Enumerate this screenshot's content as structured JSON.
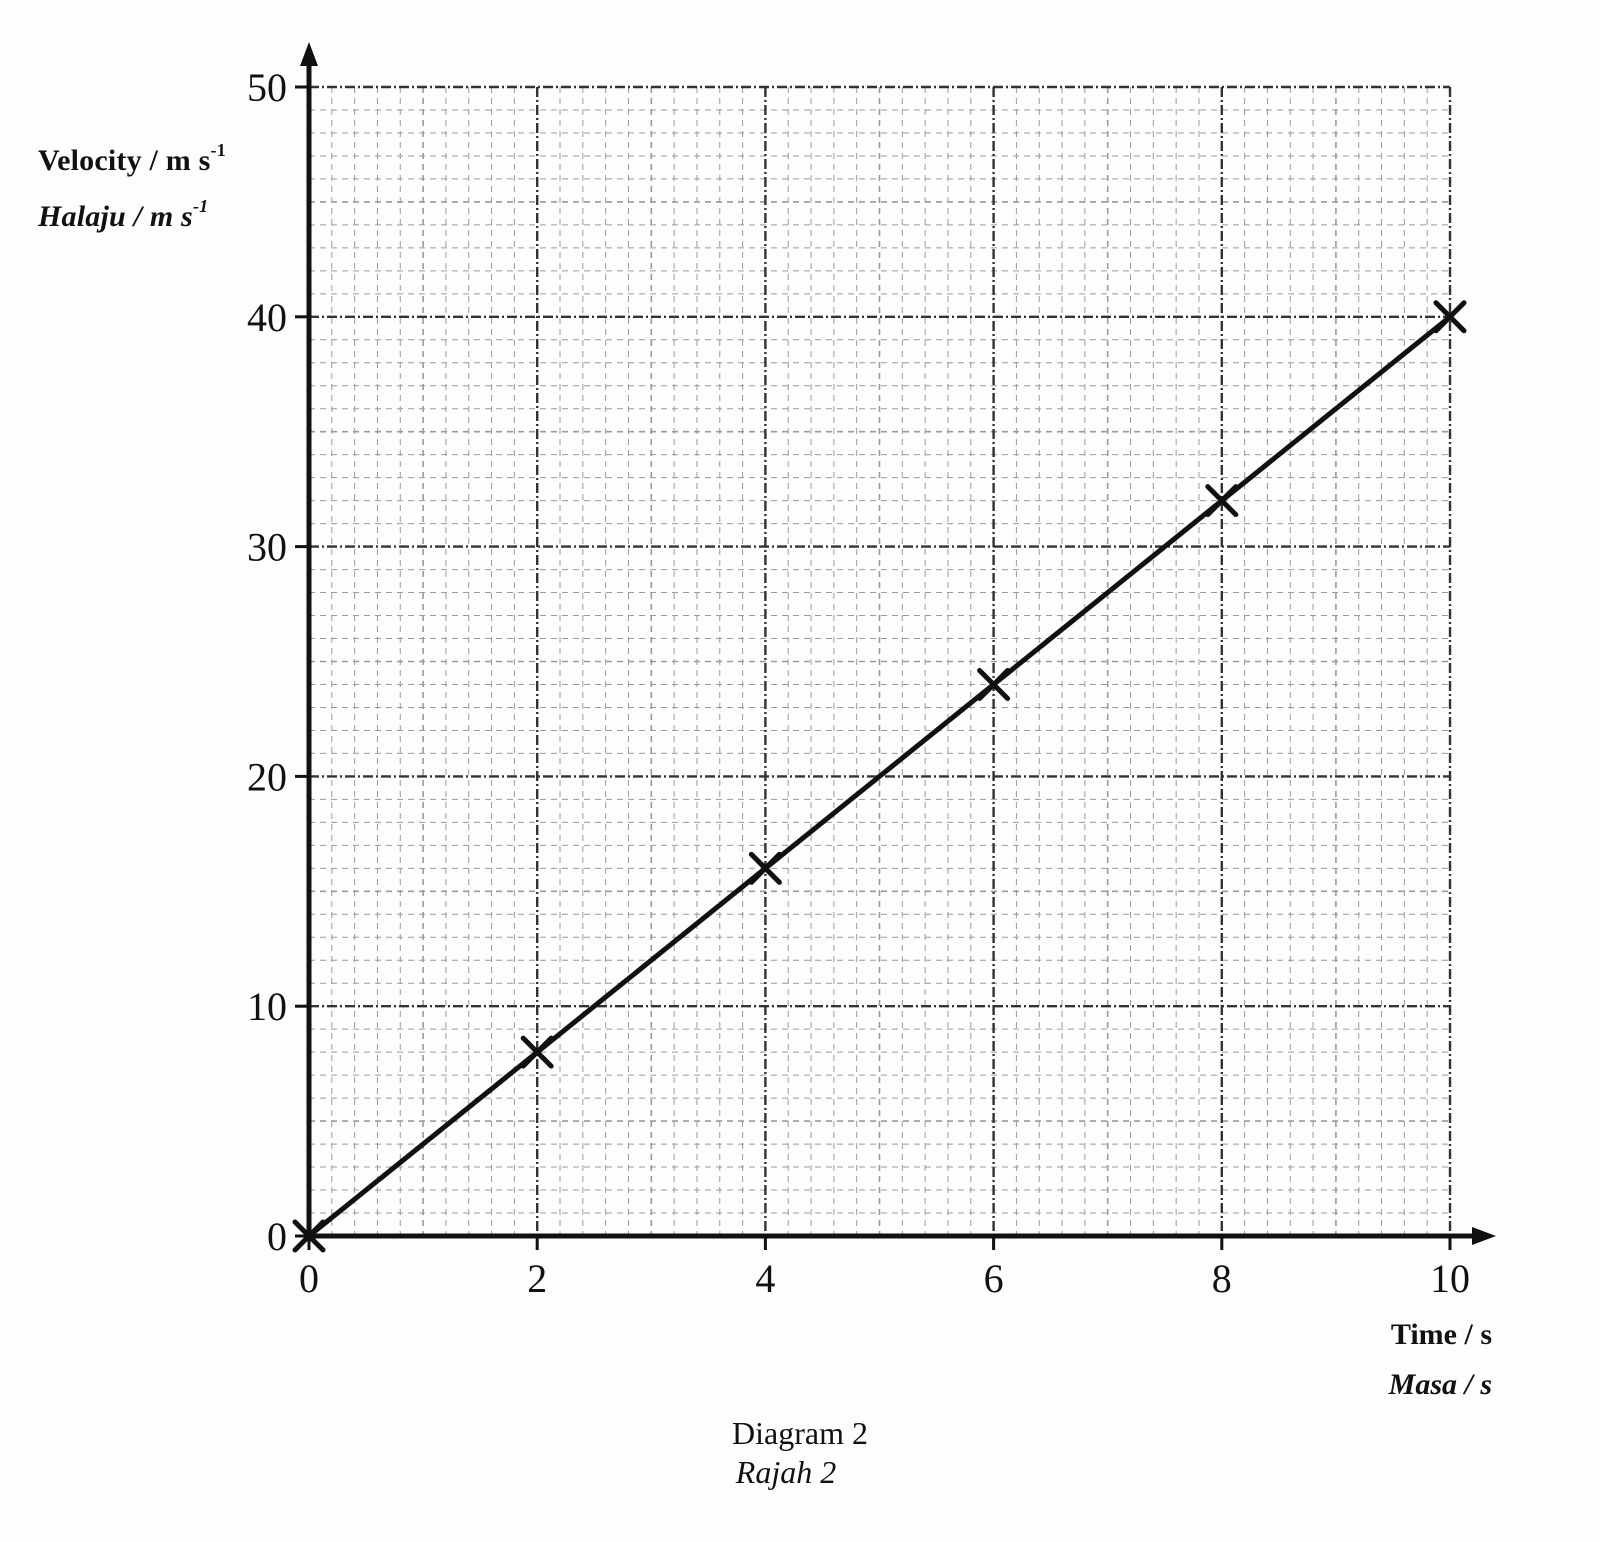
{
  "figure": {
    "caption": "Diagram 2",
    "caption_translation": "Rajah 2"
  },
  "axes": {
    "y_label": "Velocity / m s",
    "y_label_sup": "-1",
    "y_label_translation": "Halaju / m s",
    "y_label_translation_sup": "-1",
    "x_label": "Time / s",
    "x_label_translation": "Masa / s"
  },
  "colors": {
    "ink": "#111111",
    "grid_minor": "#9a9a9a",
    "grid_major": "#333333",
    "paper": "#fdfdfb"
  },
  "chart_data": {
    "type": "line",
    "title": "Diagram 2 / Rajah 2",
    "xlabel": "Time / s (Masa / s)",
    "ylabel": "Velocity / m s^-1 (Halaju / m s^-1)",
    "x": [
      0,
      2,
      4,
      6,
      8,
      10
    ],
    "series": [
      {
        "name": "Velocity",
        "values": [
          0,
          8,
          16,
          24,
          32,
          40
        ],
        "marker": "x",
        "line": "straight best-fit through origin"
      }
    ],
    "x_ticks": [
      "0",
      "2",
      "4",
      "6",
      "8",
      "10"
    ],
    "y_ticks": [
      "0",
      "10",
      "20",
      "30",
      "40",
      "50"
    ],
    "xlim": [
      0,
      10
    ],
    "ylim": [
      0,
      50
    ],
    "grid": "graph paper: major every 2 s / 10 m s^-1, minor every 0.2 s / 1 m s^-1",
    "legend": "none"
  }
}
